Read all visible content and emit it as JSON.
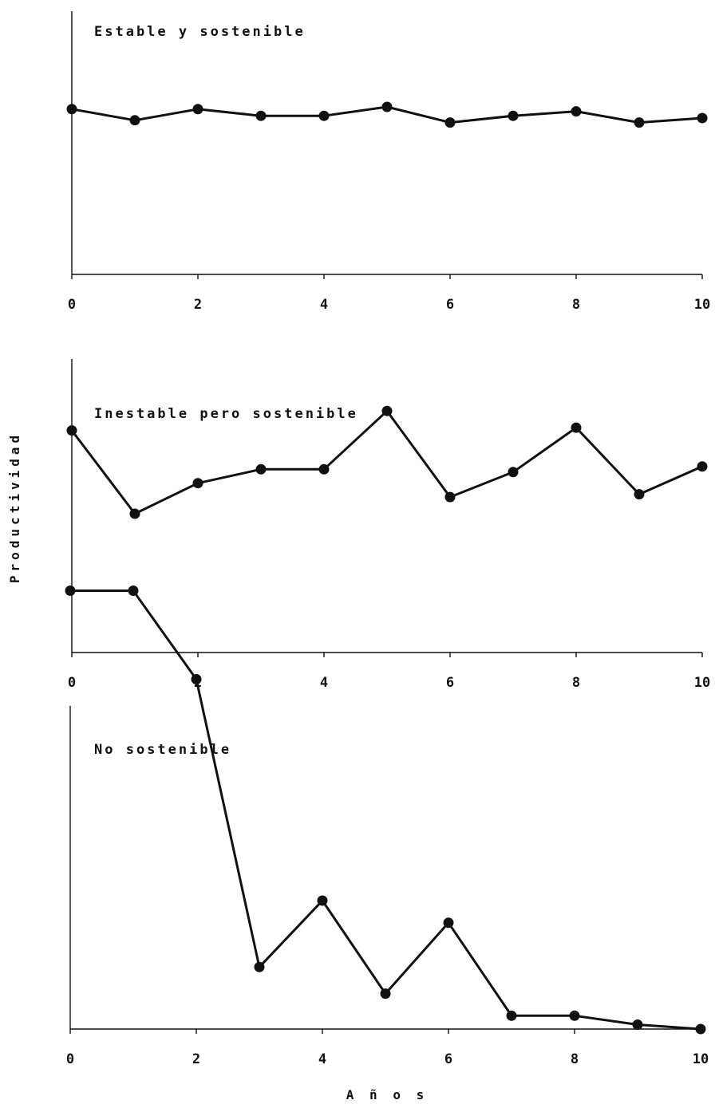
{
  "chart_data": [
    {
      "type": "line",
      "title": "Estable y sostenible",
      "x": [
        0,
        1,
        2,
        3,
        4,
        5,
        6,
        7,
        8,
        9,
        10
      ],
      "series": [
        {
          "values": [
            0.74,
            0.69,
            0.74,
            0.71,
            0.71,
            0.75,
            0.68,
            0.71,
            0.73,
            0.68,
            0.7
          ]
        }
      ],
      "xticks": [
        0,
        2,
        4,
        6,
        8,
        10
      ],
      "xlim": [
        0,
        10
      ],
      "ylim": [
        0,
        1
      ],
      "grid": false
    },
    {
      "type": "line",
      "title": "Inestable pero sostenible",
      "x": [
        0,
        1,
        2,
        3,
        4,
        5,
        6,
        7,
        8,
        9,
        10
      ],
      "series": [
        {
          "values": [
            0.8,
            0.5,
            0.61,
            0.66,
            0.66,
            0.87,
            0.56,
            0.65,
            0.81,
            0.57,
            0.67
          ]
        }
      ],
      "xticks": [
        0,
        2,
        4,
        6,
        8,
        10
      ],
      "xlim": [
        0,
        10
      ],
      "ylim": [
        0,
        1
      ],
      "grid": false
    },
    {
      "type": "line",
      "title": "No sostenible",
      "x": [
        0,
        1,
        2,
        3,
        4,
        5,
        6,
        7,
        8,
        9,
        10
      ],
      "series": [
        {
          "values": [
            0.99,
            0.99,
            0.79,
            0.14,
            0.29,
            0.08,
            0.24,
            0.03,
            0.03,
            0.01,
            0.0
          ]
        }
      ],
      "xticks": [
        0,
        2,
        4,
        6,
        8,
        10
      ],
      "xlim": [
        0,
        10
      ],
      "ylim": [
        0,
        1
      ],
      "grid": false
    }
  ],
  "shared": {
    "ylabel": "Productividad",
    "xlabel": "A ñ o s"
  }
}
